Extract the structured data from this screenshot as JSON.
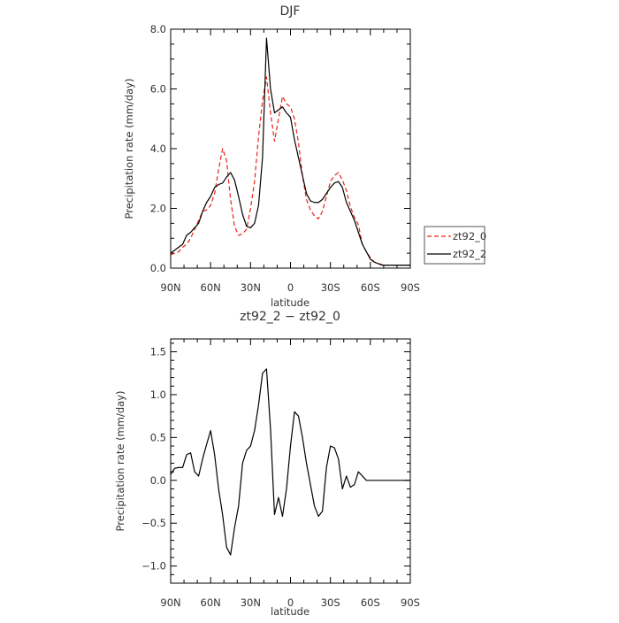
{
  "chart_data": [
    {
      "type": "line",
      "title": "DJF",
      "xlabel": "latitude",
      "ylabel": "Precipitation rate (mm/day)",
      "x_tick_labels": [
        "90N",
        "60N",
        "30N",
        "0",
        "30S",
        "60S",
        "90S"
      ],
      "x_tick_values": [
        90,
        60,
        30,
        0,
        -30,
        -60,
        -90
      ],
      "xlim": [
        90,
        -90
      ],
      "y_tick_labels": [
        "0.0",
        "2.0",
        "4.0",
        "6.0",
        "8.0"
      ],
      "y_tick_values": [
        0,
        2,
        4,
        6,
        8
      ],
      "ylim": [
        0,
        8
      ],
      "legend_position": "right",
      "x": [
        90,
        87,
        84,
        81,
        78,
        75,
        72,
        69,
        66,
        63,
        60,
        57,
        54,
        51,
        48,
        45,
        42,
        39,
        36,
        33,
        30,
        27,
        24,
        21,
        18,
        15,
        12,
        9,
        6,
        3,
        0,
        -3,
        -6,
        -9,
        -12,
        -15,
        -18,
        -21,
        -24,
        -27,
        -30,
        -33,
        -36,
        -39,
        -42,
        -45,
        -48,
        -51,
        -54,
        -57,
        -60,
        -63,
        -66,
        -69,
        -72,
        -75,
        -78,
        -81,
        -84,
        -87,
        -90
      ],
      "series": [
        {
          "name": "zt92_0",
          "color": "#e8231a",
          "dash": "dashed",
          "values": [
            0.45,
            0.5,
            0.55,
            0.7,
            0.8,
            1.0,
            1.3,
            1.6,
            1.9,
            1.95,
            2.1,
            2.5,
            3.3,
            4.0,
            3.6,
            2.3,
            1.4,
            1.1,
            1.15,
            1.3,
            2.0,
            2.9,
            4.4,
            5.6,
            6.4,
            5.2,
            4.25,
            5.0,
            5.75,
            5.5,
            5.4,
            5.0,
            4.2,
            3.1,
            2.3,
            1.95,
            1.75,
            1.65,
            1.9,
            2.4,
            2.9,
            3.1,
            3.2,
            2.95,
            2.6,
            2.05,
            1.7,
            1.45,
            0.8,
            0.55,
            0.35,
            0.2,
            0.15,
            0.12,
            0.1,
            0.1,
            0.1,
            0.1,
            0.1,
            0.1,
            0.1
          ]
        },
        {
          "name": "zt92_2",
          "color": "#000000",
          "dash": "solid",
          "values": [
            0.5,
            0.6,
            0.7,
            0.8,
            1.1,
            1.2,
            1.35,
            1.5,
            1.9,
            2.2,
            2.4,
            2.7,
            2.8,
            2.85,
            3.05,
            3.2,
            2.95,
            2.4,
            1.8,
            1.4,
            1.35,
            1.5,
            2.1,
            3.7,
            7.7,
            6.0,
            5.2,
            5.3,
            5.4,
            5.2,
            5.05,
            4.3,
            3.7,
            3.1,
            2.5,
            2.25,
            2.2,
            2.2,
            2.3,
            2.5,
            2.7,
            2.85,
            2.9,
            2.7,
            2.2,
            1.9,
            1.6,
            1.2,
            0.8,
            0.55,
            0.3,
            0.2,
            0.15,
            0.1,
            0.1,
            0.1,
            0.1,
            0.1,
            0.1,
            0.1,
            0.1
          ]
        }
      ]
    },
    {
      "type": "line",
      "title": "zt92_2 − zt92_0",
      "xlabel": "latitude",
      "ylabel": "Precipitation rate (mm/day)",
      "x_tick_labels": [
        "90N",
        "60N",
        "30N",
        "0",
        "30S",
        "60S",
        "90S"
      ],
      "x_tick_values": [
        90,
        60,
        30,
        0,
        -30,
        -60,
        -90
      ],
      "xlim": [
        90,
        -90
      ],
      "y_tick_labels": [
        "−1.0",
        "−0.5",
        "0.0",
        "0.5",
        "1.0",
        "1.5"
      ],
      "y_tick_values": [
        -1.0,
        -0.5,
        0.0,
        0.5,
        1.0,
        1.5
      ],
      "ylim": [
        -1.2,
        1.65
      ],
      "x": [
        90,
        87,
        84,
        81,
        78,
        75,
        72,
        69,
        66,
        63,
        60,
        57,
        54,
        51,
        48,
        45,
        42,
        39,
        36,
        33,
        30,
        27,
        24,
        21,
        18,
        15,
        12,
        9,
        6,
        3,
        0,
        -3,
        -6,
        -9,
        -12,
        -15,
        -18,
        -21,
        -24,
        -27,
        -30,
        -33,
        -36,
        -39,
        -42,
        -45,
        -48,
        -51,
        -54,
        -57,
        -60,
        -63,
        -66,
        -69,
        -72,
        -75,
        -78,
        -81,
        -84,
        -87,
        -90
      ],
      "series": [
        {
          "name": "",
          "color": "#000000",
          "dash": "solid",
          "values": [
            0.07,
            0.14,
            0.15,
            0.15,
            0.3,
            0.32,
            0.1,
            0.05,
            0.25,
            0.42,
            0.58,
            0.3,
            -0.1,
            -0.4,
            -0.78,
            -0.87,
            -0.55,
            -0.3,
            0.2,
            0.35,
            0.4,
            0.58,
            0.88,
            1.25,
            1.3,
            0.6,
            -0.4,
            -0.2,
            -0.42,
            -0.1,
            0.4,
            0.8,
            0.75,
            0.5,
            0.2,
            -0.05,
            -0.3,
            -0.42,
            -0.36,
            0.15,
            0.4,
            0.38,
            0.25,
            -0.1,
            0.05,
            -0.08,
            -0.05,
            0.1,
            0.05,
            0.0,
            0.0,
            0.0,
            0.0,
            0.0,
            0.0,
            0.0,
            0.0,
            0.0,
            0.0,
            0.0,
            0.0
          ]
        }
      ]
    }
  ]
}
